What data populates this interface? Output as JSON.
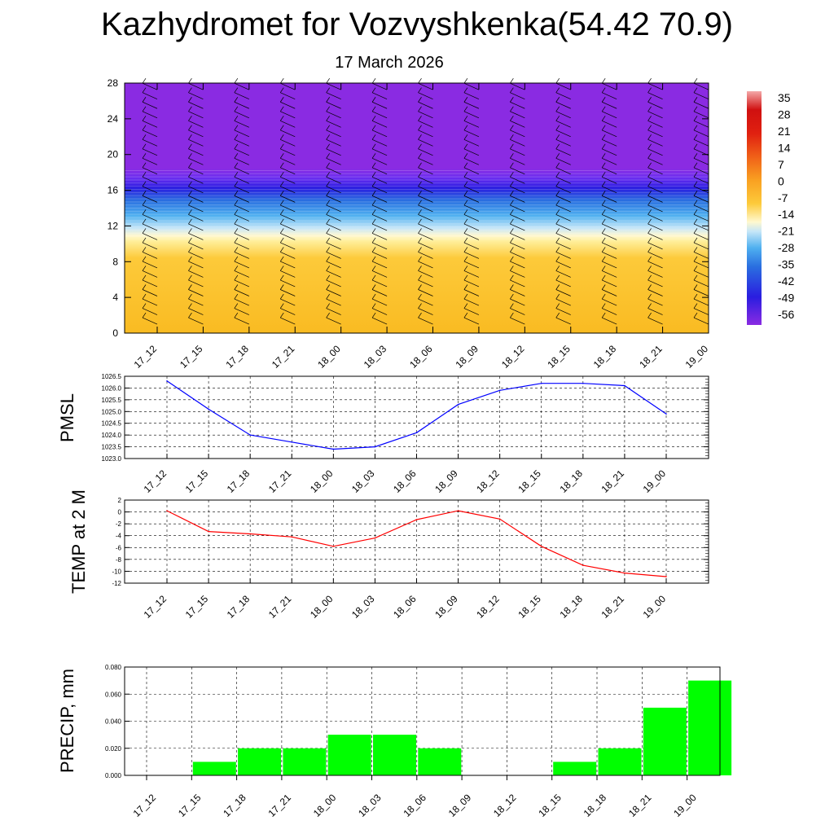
{
  "header": {
    "title": "Kazhydromet for Vozvyshkenka(54.42 70.9)",
    "date": "17 March 2026"
  },
  "colors": {
    "pmsl_line": "#0000ff",
    "temp_line": "#ff0000",
    "precip_bar": "#00ff00",
    "upper_air": "#8a2be2",
    "jet_core": "#3322dd",
    "cold_layer": "#4fb0f0",
    "freezing": "#fff2a8",
    "warm_layer": "#fdc22e"
  },
  "chart_data": [
    {
      "type": "heatmap",
      "name": "cross-section",
      "x_labels": [
        "17_12",
        "17_15",
        "17_18",
        "17_21",
        "18_00",
        "18_03",
        "18_06",
        "18_09",
        "18_12",
        "18_15",
        "18_18",
        "18_21",
        "19_00"
      ],
      "ylim": [
        0,
        28
      ],
      "y_ticks": [
        0,
        4,
        8,
        12,
        16,
        20,
        24,
        28
      ],
      "layers": [
        {
          "from": 0,
          "to": 10.8,
          "value": 0
        },
        {
          "from": 10.8,
          "to": 12,
          "value": -10
        },
        {
          "from": 12,
          "to": 14.5,
          "value": -25
        },
        {
          "from": 14.5,
          "to": 16,
          "value": -40
        },
        {
          "from": 16,
          "to": 17.5,
          "value": -52
        },
        {
          "from": 17.5,
          "to": 28,
          "value": -56
        }
      ],
      "colorbar": {
        "labels": [
          "35",
          "28",
          "21",
          "14",
          "7",
          "0",
          "-7",
          "-14",
          "-21",
          "-28",
          "-35",
          "-42",
          "-49",
          "-56"
        ],
        "range": [
          -56,
          35
        ]
      }
    },
    {
      "type": "line",
      "name": "pmsl",
      "ylabel": "PMSL",
      "x": [
        "17_12",
        "17_15",
        "17_18",
        "17_21",
        "18_00",
        "18_03",
        "18_06",
        "18_09",
        "18_12",
        "18_15",
        "18_18",
        "18_21",
        "19_00"
      ],
      "values": [
        1026.3,
        1025.1,
        1024.0,
        1023.7,
        1023.4,
        1023.5,
        1024.1,
        1025.3,
        1025.9,
        1026.2,
        1026.2,
        1026.1,
        1024.9
      ],
      "ylim": [
        1023.0,
        1026.5
      ],
      "y_ticks": [
        "1023.0",
        "1023.5",
        "1024.0",
        "1024.5",
        "1025.0",
        "1025.5",
        "1026.0",
        "1026.5"
      ]
    },
    {
      "type": "line",
      "name": "temp",
      "ylabel": "TEMP at 2 M",
      "x": [
        "17_12",
        "17_15",
        "17_18",
        "17_21",
        "18_00",
        "18_03",
        "18_06",
        "18_09",
        "18_12",
        "18_15",
        "18_18",
        "18_21",
        "19_00"
      ],
      "values": [
        0.2,
        -3.3,
        -3.7,
        -4.2,
        -5.8,
        -4.4,
        -1.3,
        0.2,
        -1.2,
        -5.8,
        -9.0,
        -10.3,
        -10.9
      ],
      "ylim": [
        -12,
        2
      ],
      "y_ticks": [
        "2",
        "0",
        "-2",
        "-4",
        "-6",
        "-8",
        "-10",
        "-12"
      ]
    },
    {
      "type": "bar",
      "name": "precip",
      "ylabel": "PRECIP, mm",
      "categories": [
        "17_12",
        "17_15",
        "17_18",
        "17_21",
        "18_00",
        "18_03",
        "18_06",
        "18_09",
        "18_12",
        "18_15",
        "18_18",
        "18_21",
        "19_00"
      ],
      "values": [
        0,
        0.01,
        0.02,
        0.02,
        0.03,
        0.03,
        0.02,
        0,
        0,
        0.01,
        0.02,
        0.05,
        0.07
      ],
      "ylim": [
        0,
        0.08
      ],
      "y_ticks": [
        "0.000",
        "0.020",
        "0.040",
        "0.060",
        "0.080"
      ]
    }
  ]
}
